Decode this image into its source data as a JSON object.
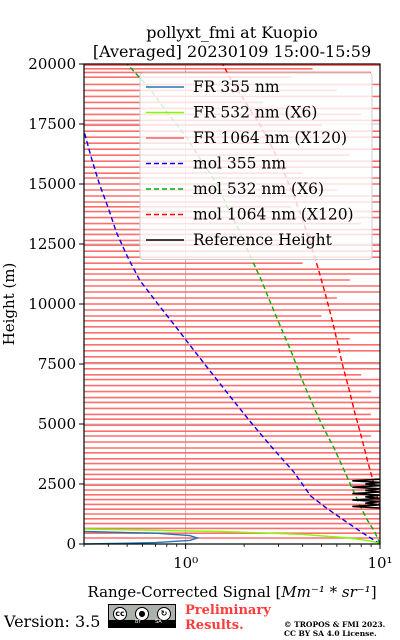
{
  "chart_data": {
    "type": "line",
    "title": "pollyxt_fmi at Kuopio",
    "subtitle": "[Averaged] 20230109 15:00-15:59",
    "xlabel_prefix": "Range-Corrected Signal [",
    "xlabel_math": "Mm⁻¹ * sr⁻¹",
    "xlabel_suffix": "]",
    "ylabel": "Height (m)",
    "x_scale": "log",
    "xlim": [
      0.3,
      10
    ],
    "ylim": [
      0,
      20000
    ],
    "x_ticks": [
      1,
      10
    ],
    "x_tick_labels": [
      "10⁰",
      "10¹"
    ],
    "y_ticks": [
      0,
      2500,
      5000,
      7500,
      10000,
      12500,
      15000,
      17500,
      20000
    ],
    "y_tick_labels": [
      "0",
      "2500",
      "5000",
      "7500",
      "10000",
      "12500",
      "15000",
      "17500",
      "20000"
    ],
    "grid": true,
    "legend_position": "top-right",
    "legend": [
      {
        "label": "FR 355 nm",
        "color": "#1f77b4",
        "style": "solid"
      },
      {
        "label": "FR 532 nm (X6)",
        "color": "#80ff00",
        "style": "solid"
      },
      {
        "label": "FR 1064 nm (X120)",
        "color": "#ff6060",
        "style": "solid"
      },
      {
        "label": "mol 355 nm",
        "color": "#0000ff",
        "style": "dashed"
      },
      {
        "label": "mol 532 nm (X6)",
        "color": "#00b000",
        "style": "dashed"
      },
      {
        "label": "mol 1064 nm (X120)",
        "color": "#ff0000",
        "style": "dashed"
      },
      {
        "label": "Reference Height",
        "color": "#000000",
        "style": "solid"
      }
    ],
    "series": [
      {
        "name": "mol 355 nm",
        "color": "#0000ff",
        "dash": true,
        "points": [
          [
            10,
            0
          ],
          [
            8,
            500
          ],
          [
            6.5,
            1000
          ],
          [
            5.3,
            1500
          ],
          [
            4.4,
            2000
          ],
          [
            3.6,
            3000
          ],
          [
            2.8,
            4000
          ],
          [
            2.2,
            5000
          ],
          [
            1.75,
            6000
          ],
          [
            1.4,
            7000
          ],
          [
            1.12,
            8000
          ],
          [
            0.9,
            9000
          ],
          [
            0.72,
            10000
          ],
          [
            0.58,
            11000
          ],
          [
            0.5,
            12000
          ],
          [
            0.44,
            13000
          ],
          [
            0.4,
            14000
          ],
          [
            0.36,
            15000
          ],
          [
            0.33,
            16000
          ],
          [
            0.3,
            17200
          ]
        ]
      },
      {
        "name": "mol 532 nm (X6)",
        "color": "#00b000",
        "dash": true,
        "points": [
          [
            10,
            0
          ],
          [
            9.4,
            500
          ],
          [
            8.6,
            1000
          ],
          [
            8,
            1500
          ],
          [
            7.5,
            2000
          ],
          [
            6.6,
            3000
          ],
          [
            5.8,
            4000
          ],
          [
            5,
            5000
          ],
          [
            4.4,
            6000
          ],
          [
            3.9,
            7000
          ],
          [
            3.5,
            8000
          ],
          [
            3.1,
            9000
          ],
          [
            2.75,
            10000
          ],
          [
            2.45,
            11000
          ],
          [
            2.15,
            12000
          ],
          [
            1.9,
            13000
          ],
          [
            1.65,
            14000
          ],
          [
            1.45,
            15000
          ],
          [
            1.2,
            16000
          ],
          [
            1.0,
            17000
          ],
          [
            0.8,
            18000
          ],
          [
            0.65,
            19000
          ],
          [
            0.5,
            20000
          ]
        ]
      },
      {
        "name": "mol 1064 nm (X120)",
        "color": "#ff0000",
        "dash": true,
        "points": [
          [
            10,
            1500
          ],
          [
            9.3,
            2500
          ],
          [
            8.6,
            3500
          ],
          [
            8,
            4500
          ],
          [
            7.4,
            5500
          ],
          [
            6.9,
            6500
          ],
          [
            6.4,
            7500
          ],
          [
            6,
            8500
          ],
          [
            5.6,
            9500
          ],
          [
            5.2,
            10500
          ],
          [
            4.8,
            11500
          ],
          [
            4.4,
            12500
          ],
          [
            4,
            13500
          ],
          [
            3.6,
            14500
          ],
          [
            3.2,
            15500
          ],
          [
            2.8,
            16500
          ],
          [
            2.4,
            17500
          ],
          [
            2,
            18500
          ],
          [
            1.75,
            19200
          ],
          [
            1.55,
            20000
          ]
        ]
      },
      {
        "name": "FR 355 nm",
        "color": "#1f77b4",
        "dash": false,
        "points": [
          [
            0.3,
            0
          ],
          [
            0.7,
            60
          ],
          [
            1.05,
            150
          ],
          [
            1.15,
            250
          ],
          [
            1.05,
            350
          ],
          [
            0.7,
            450
          ],
          [
            0.3,
            520
          ]
        ]
      },
      {
        "name": "FR 532 nm (X6)",
        "color": "#80ff00",
        "dash": false,
        "points": [
          [
            10,
            20
          ],
          [
            9,
            120
          ],
          [
            7,
            250
          ],
          [
            4,
            400
          ],
          [
            1.5,
            520
          ],
          [
            0.6,
            580
          ],
          [
            0.3,
            620
          ]
        ]
      }
    ],
    "fr1064_noise_bars": [
      [
        19950,
        0.3,
        10
      ],
      [
        19800,
        0.3,
        4.5
      ],
      [
        19650,
        0.3,
        9
      ],
      [
        19450,
        0.3,
        3.5
      ],
      [
        19150,
        0.3,
        10
      ],
      [
        18900,
        0.3,
        6
      ],
      [
        18650,
        0.3,
        10
      ],
      [
        18400,
        0.3,
        2.5
      ],
      [
        18150,
        0.3,
        10
      ],
      [
        17900,
        0.3,
        8
      ],
      [
        17650,
        0.3,
        10
      ],
      [
        17450,
        0.3,
        5
      ],
      [
        17200,
        0.3,
        10
      ],
      [
        16950,
        0.3,
        10
      ],
      [
        16700,
        0.3,
        3
      ],
      [
        16450,
        0.3,
        10
      ],
      [
        16200,
        0.3,
        7
      ],
      [
        15950,
        0.3,
        10
      ],
      [
        15700,
        0.3,
        10
      ],
      [
        15450,
        0.3,
        4
      ],
      [
        15250,
        0.3,
        10
      ],
      [
        15000,
        0.3,
        10
      ],
      [
        14750,
        0.3,
        6
      ],
      [
        14500,
        0.3,
        10
      ],
      [
        14250,
        0.3,
        10
      ],
      [
        14050,
        0.3,
        3.5
      ],
      [
        13850,
        0.3,
        10
      ],
      [
        13600,
        0.3,
        10
      ],
      [
        13350,
        0.3,
        8
      ],
      [
        13100,
        0.3,
        10
      ],
      [
        12900,
        0.3,
        10
      ],
      [
        12650,
        0.3,
        5
      ],
      [
        12450,
        0.3,
        10
      ],
      [
        12200,
        0.3,
        10
      ],
      [
        11950,
        0.3,
        10
      ],
      [
        11700,
        0.3,
        4
      ],
      [
        11450,
        0.3,
        10
      ],
      [
        11250,
        0.3,
        10
      ],
      [
        11000,
        0.3,
        7
      ],
      [
        10750,
        0.3,
        10
      ],
      [
        10500,
        0.3,
        10
      ],
      [
        10250,
        0.3,
        6
      ],
      [
        10000,
        0.3,
        10
      ],
      [
        9750,
        0.3,
        10
      ],
      [
        9500,
        0.3,
        5
      ],
      [
        9300,
        0.3,
        10
      ],
      [
        9050,
        0.3,
        10
      ],
      [
        8800,
        0.3,
        10
      ],
      [
        8550,
        0.3,
        7
      ],
      [
        8300,
        0.3,
        10
      ],
      [
        8050,
        0.3,
        10
      ],
      [
        7800,
        0.3,
        6
      ],
      [
        7550,
        0.3,
        10
      ],
      [
        7300,
        0.3,
        10
      ],
      [
        7050,
        0.3,
        8
      ],
      [
        6850,
        0.3,
        10
      ],
      [
        6600,
        0.3,
        10
      ],
      [
        6350,
        0.3,
        9
      ],
      [
        6100,
        0.3,
        10
      ],
      [
        5900,
        0.3,
        10
      ],
      [
        5650,
        0.3,
        10
      ],
      [
        5400,
        0.3,
        9
      ],
      [
        5200,
        0.3,
        10
      ],
      [
        4950,
        0.3,
        10
      ],
      [
        4700,
        0.3,
        10
      ],
      [
        4500,
        0.3,
        9
      ],
      [
        4250,
        0.3,
        10
      ],
      [
        4000,
        0.3,
        10
      ],
      [
        3800,
        0.3,
        10
      ],
      [
        3550,
        0.3,
        10
      ],
      [
        3350,
        0.3,
        10
      ],
      [
        3100,
        0.3,
        10
      ],
      [
        2900,
        0.3,
        10
      ],
      [
        2700,
        0.3,
        10
      ],
      [
        2450,
        0.3,
        10
      ],
      [
        2250,
        0.3,
        10
      ],
      [
        2050,
        0.3,
        10
      ],
      [
        1850,
        0.3,
        10
      ],
      [
        1650,
        0.3,
        10
      ],
      [
        1450,
        0.3,
        10
      ],
      [
        1250,
        0.3,
        10
      ],
      [
        1050,
        0.3,
        10
      ],
      [
        850,
        0.3,
        10
      ],
      [
        650,
        0.3,
        10
      ],
      [
        450,
        0.3,
        10
      ],
      [
        250,
        0.3,
        10
      ]
    ],
    "reference_height_range": [
      1500,
      2700
    ]
  },
  "footer": {
    "version": "Version: 3.5",
    "preliminary_line1": "Preliminary",
    "preliminary_line2": "Results.",
    "copyright_line1": "© TROPOS & FMI 2023.",
    "copyright_line2": "CC BY SA 4.0 License.",
    "badge_cc": "cc",
    "badge_by": "BY",
    "badge_sa": "SA"
  }
}
